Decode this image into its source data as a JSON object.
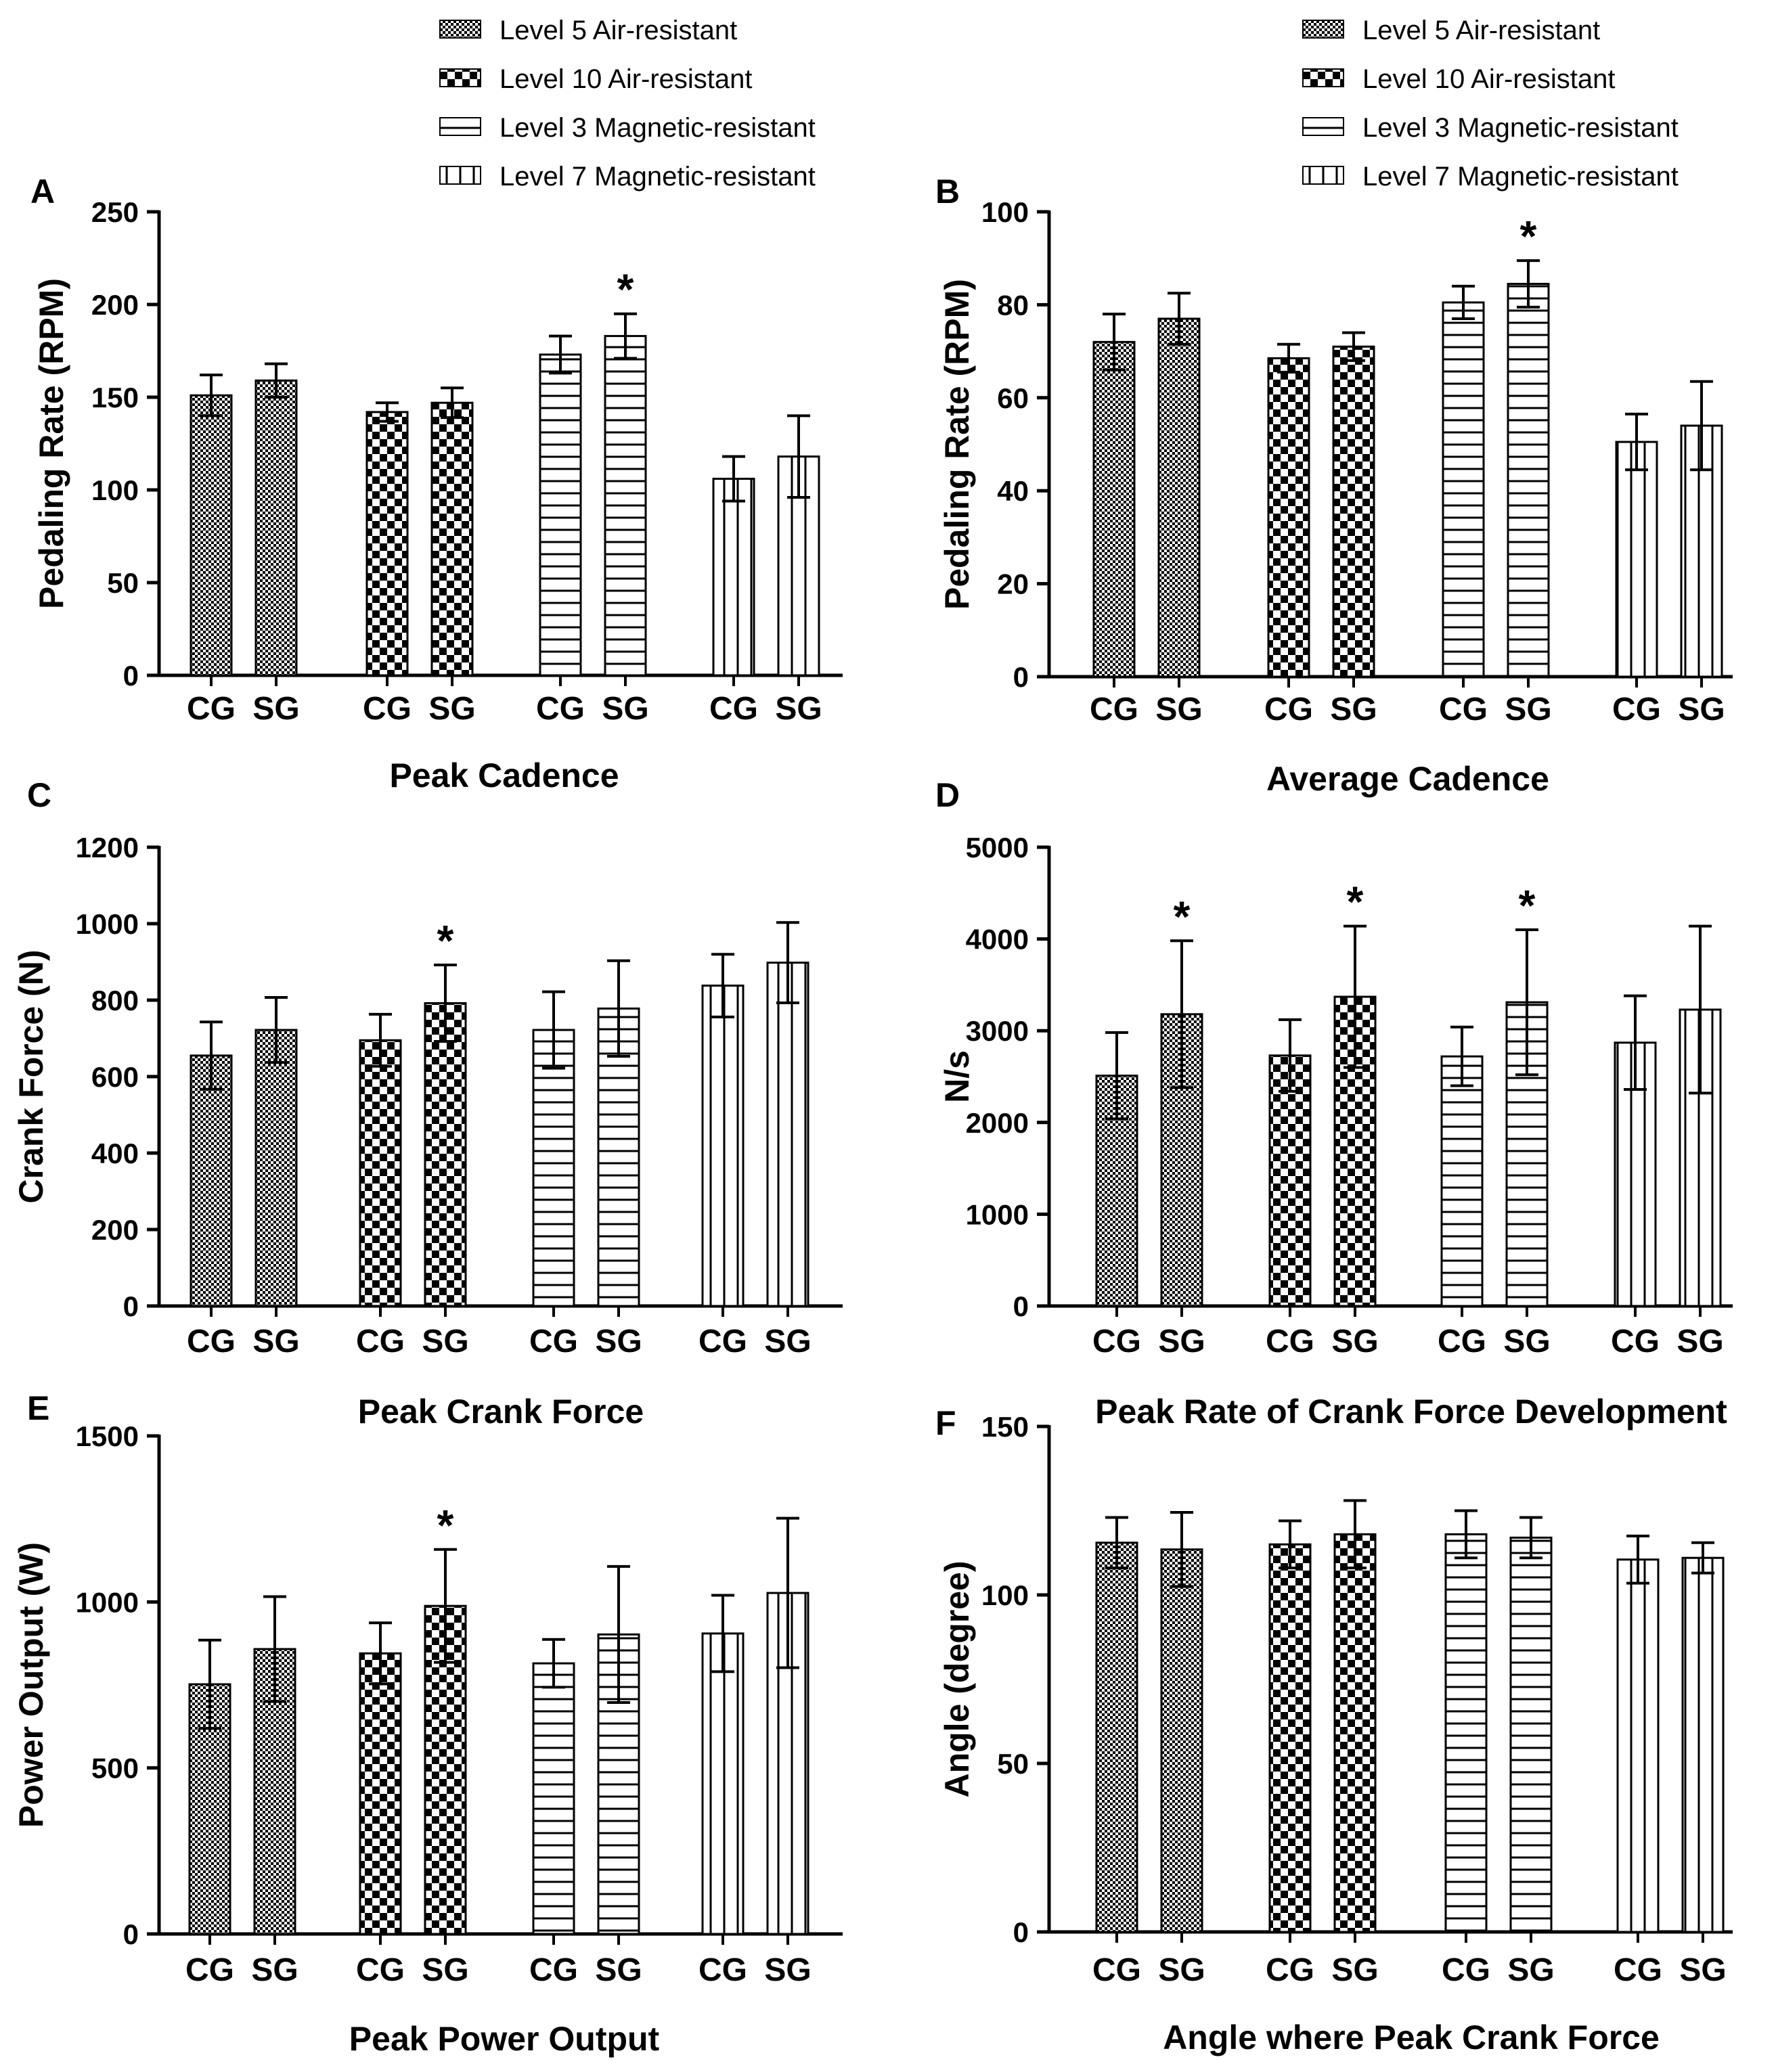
{
  "figure": {
    "legend": [
      "Level 5 Air-resistant",
      "Level 10 Air-resistant",
      "Level 3 Magnetic-resistant",
      "Level 7 Magnetic-resistant"
    ]
  },
  "chart_data": [
    {
      "type": "bar",
      "panel": "A",
      "title": "Peak Cadence",
      "ylabel": "Pedaling Rate (RPM)",
      "xlabel": "Peak Cadence",
      "ylim": [
        0,
        250
      ],
      "yticks": [
        0,
        50,
        100,
        150,
        200,
        250
      ],
      "groups": [
        "Level 5 Air-resistant",
        "Level 10 Air-resistant",
        "Level 3 Magnetic-resistant",
        "Level 7 Magnetic-resistant"
      ],
      "categories": [
        "CG",
        "SG"
      ],
      "values": [
        [
          151,
          159
        ],
        [
          142,
          147
        ],
        [
          173,
          183
        ],
        [
          106,
          118
        ]
      ],
      "errors": [
        [
          11,
          9
        ],
        [
          5,
          8
        ],
        [
          10,
          12
        ],
        [
          12,
          22
        ]
      ],
      "significant": [
        [
          false,
          false
        ],
        [
          false,
          false
        ],
        [
          false,
          true
        ],
        [
          false,
          false
        ]
      ],
      "grid": false
    },
    {
      "type": "bar",
      "panel": "B",
      "title": "Average Cadence",
      "ylabel": "Pedaling Rate (RPM)",
      "xlabel": "Average Cadence",
      "ylim": [
        0,
        100
      ],
      "yticks": [
        0,
        20,
        40,
        60,
        80,
        100
      ],
      "groups": [
        "Level 5 Air-resistant",
        "Level 10 Air-resistant",
        "Level 3 Magnetic-resistant",
        "Level 7 Magnetic-resistant"
      ],
      "categories": [
        "CG",
        "SG"
      ],
      "values": [
        [
          72,
          77
        ],
        [
          68.5,
          71
        ],
        [
          80.5,
          84.5
        ],
        [
          50.5,
          54
        ]
      ],
      "errors": [
        [
          6,
          5.5
        ],
        [
          3,
          3
        ],
        [
          3.5,
          5
        ],
        [
          6,
          9.5
        ]
      ],
      "significant": [
        [
          false,
          false
        ],
        [
          false,
          false
        ],
        [
          false,
          true
        ],
        [
          false,
          false
        ]
      ],
      "grid": false
    },
    {
      "type": "bar",
      "panel": "C",
      "title": "Peak Crank Force",
      "ylabel": "Crank Force (N)",
      "xlabel": "Peak Crank Force",
      "ylim": [
        0,
        1200
      ],
      "yticks": [
        0,
        200,
        400,
        600,
        800,
        1000,
        1200
      ],
      "groups": [
        "Level 5 Air-resistant",
        "Level 10 Air-resistant",
        "Level 3 Magnetic-resistant",
        "Level 7 Magnetic-resistant"
      ],
      "categories": [
        "CG",
        "SG"
      ],
      "values": [
        [
          655,
          722
        ],
        [
          695,
          792
        ],
        [
          722,
          778
        ],
        [
          838,
          898
        ]
      ],
      "errors": [
        [
          88,
          85
        ],
        [
          68,
          100
        ],
        [
          100,
          125
        ],
        [
          82,
          105
        ]
      ],
      "significant": [
        [
          false,
          false
        ],
        [
          false,
          true
        ],
        [
          false,
          false
        ],
        [
          false,
          false
        ]
      ],
      "grid": false
    },
    {
      "type": "bar",
      "panel": "D",
      "title": "Peak Rate of Crank Force Development",
      "ylabel": "N/s",
      "xlabel": "Peak Rate of Crank Force Development",
      "ylim": [
        0,
        5000
      ],
      "yticks": [
        0,
        1000,
        2000,
        3000,
        4000,
        5000
      ],
      "groups": [
        "Level 5 Air-resistant",
        "Level 10 Air-resistant",
        "Level 3 Magnetic-resistant",
        "Level 7 Magnetic-resistant"
      ],
      "categories": [
        "CG",
        "SG"
      ],
      "values": [
        [
          2510,
          3180
        ],
        [
          2730,
          3370
        ],
        [
          2720,
          3310
        ],
        [
          2870,
          3230
        ]
      ],
      "errors": [
        [
          470,
          800
        ],
        [
          390,
          770
        ],
        [
          320,
          790
        ],
        [
          510,
          910
        ]
      ],
      "significant": [
        [
          false,
          true
        ],
        [
          false,
          true
        ],
        [
          false,
          true
        ],
        [
          false,
          false
        ]
      ],
      "grid": false
    },
    {
      "type": "bar",
      "panel": "E",
      "title": "Peak Power Output",
      "ylabel": "Power Output (W)",
      "xlabel": "Peak Power Output",
      "ylim": [
        0,
        1500
      ],
      "yticks": [
        0,
        500,
        1000,
        1500
      ],
      "groups": [
        "Level 5 Air-resistant",
        "Level 10 Air-resistant",
        "Level 3 Magnetic-resistant",
        "Level 7 Magnetic-resistant"
      ],
      "categories": [
        "CG",
        "SG"
      ],
      "values": [
        [
          752,
          858
        ],
        [
          845,
          988
        ],
        [
          815,
          902
        ],
        [
          905,
          1027
        ]
      ],
      "errors": [
        [
          133,
          158
        ],
        [
          92,
          170
        ],
        [
          72,
          205
        ],
        [
          115,
          225
        ]
      ],
      "significant": [
        [
          false,
          false
        ],
        [
          false,
          true
        ],
        [
          false,
          false
        ],
        [
          false,
          false
        ]
      ],
      "grid": false
    },
    {
      "type": "bar",
      "panel": "F",
      "title": "Angle where Peak Crank Force",
      "ylabel": "Angle (degree)",
      "xlabel": "Angle where Peak Crank Force",
      "ylim": [
        0,
        150
      ],
      "yticks": [
        0,
        50,
        100,
        150
      ],
      "groups": [
        "Level 5 Air-resistant",
        "Level 10 Air-resistant",
        "Level 3 Magnetic-resistant",
        "Level 7 Magnetic-resistant"
      ],
      "categories": [
        "CG",
        "SG"
      ],
      "values": [
        [
          115.5,
          113.5
        ],
        [
          115,
          118
        ],
        [
          118,
          117
        ],
        [
          110.5,
          111
        ]
      ],
      "errors": [
        [
          7.5,
          11
        ],
        [
          7,
          10
        ],
        [
          7,
          6
        ],
        [
          7,
          4.5
        ]
      ],
      "significant": [
        [
          false,
          false
        ],
        [
          false,
          false
        ],
        [
          false,
          false
        ],
        [
          false,
          false
        ]
      ],
      "grid": false
    }
  ]
}
